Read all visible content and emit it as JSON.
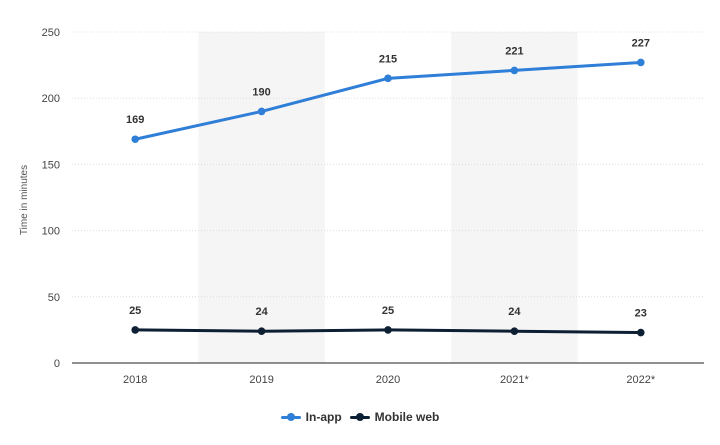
{
  "chart_data": {
    "type": "line",
    "categories": [
      "2018",
      "2019",
      "2020",
      "2021*",
      "2022*"
    ],
    "series": [
      {
        "name": "In-app",
        "values": [
          169,
          190,
          215,
          221,
          227
        ],
        "color": "#2f7ed8"
      },
      {
        "name": "Mobile web",
        "values": [
          25,
          24,
          25,
          24,
          23
        ],
        "color": "#0d1f33"
      }
    ],
    "ylabel": "Time in minutes",
    "xlabel": "",
    "ylim": [
      0,
      250
    ],
    "yticks": [
      0,
      50,
      100,
      150,
      200,
      250
    ],
    "grid": true,
    "legend": "bottom-center",
    "shaded_band_color": "#f5f5f5",
    "axis_color": "#222222",
    "grid_color": "#dddddd"
  }
}
